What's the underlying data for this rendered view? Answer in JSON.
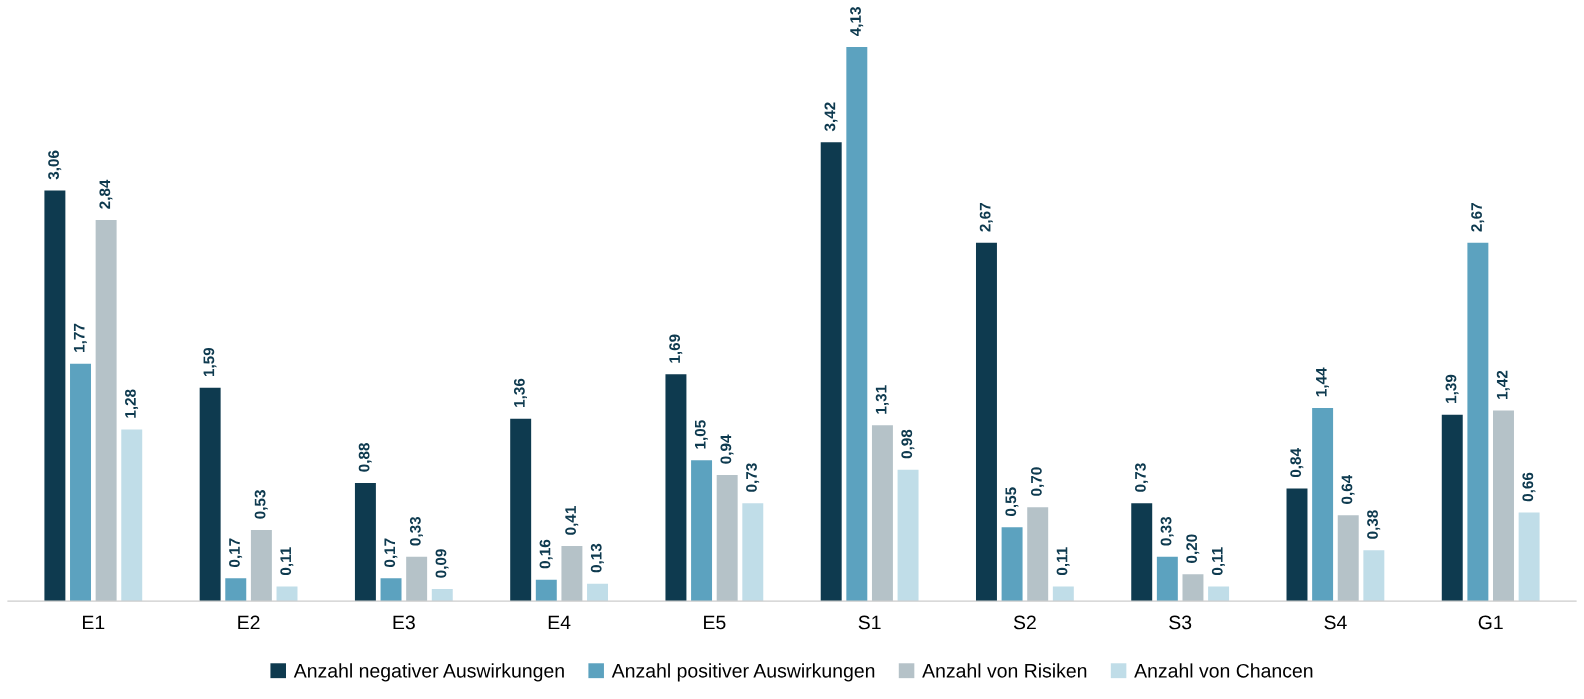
{
  "chart_data": {
    "type": "bar",
    "categories": [
      "E1",
      "E2",
      "E3",
      "E4",
      "E5",
      "S1",
      "S2",
      "S3",
      "S4",
      "G1"
    ],
    "series": [
      {
        "name": "Anzahl negativer Auswirkungen",
        "color": "#0e3a4f",
        "values": [
          3.06,
          1.59,
          0.88,
          1.36,
          1.69,
          3.42,
          2.67,
          0.73,
          0.84,
          1.39
        ],
        "value_labels": [
          "3,06",
          "1,59",
          "0,88",
          "1,36",
          "1,69",
          "3,42",
          "2,67",
          "0,73",
          "0,84",
          "1,39"
        ]
      },
      {
        "name": "Anzahl positiver Auswirkungen",
        "color": "#5ca2bf",
        "values": [
          1.77,
          0.17,
          0.17,
          0.16,
          1.05,
          4.13,
          0.55,
          0.33,
          1.44,
          2.67
        ],
        "value_labels": [
          "1,77",
          "0,17",
          "0,17",
          "0,16",
          "1,05",
          "4,13",
          "0,55",
          "0,33",
          "1,44",
          "2,67"
        ]
      },
      {
        "name": "Anzahl von Risiken",
        "color": "#b5c2c8",
        "values": [
          2.84,
          0.53,
          0.33,
          0.41,
          0.94,
          1.31,
          0.7,
          0.2,
          0.64,
          1.42
        ],
        "value_labels": [
          "2,84",
          "0,53",
          "0,33",
          "0,41",
          "0,94",
          "1,31",
          "0,70",
          "0,20",
          "0,64",
          "1,42"
        ]
      },
      {
        "name": "Anzahl von Chancen",
        "color": "#c0dde8",
        "values": [
          1.28,
          0.11,
          0.09,
          0.13,
          0.73,
          0.98,
          0.11,
          0.11,
          0.38,
          0.66
        ],
        "value_labels": [
          "1,28",
          "0,11",
          "0,09",
          "0,13",
          "0,73",
          "0,98",
          "0,11",
          "0,11",
          "0,38",
          "0,66"
        ]
      }
    ],
    "legend": "bottom",
    "grid": false,
    "tick_labels": "x"
  }
}
